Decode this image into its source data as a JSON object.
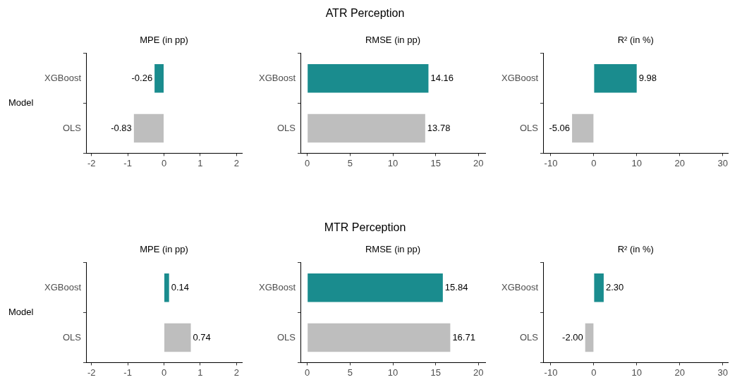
{
  "chart_data": [
    {
      "type": "bar",
      "orientation": "horizontal",
      "subtitle": "MPE (in pp)",
      "ylabel": "Model",
      "categories": [
        "XGBoost",
        "OLS"
      ],
      "values": [
        -0.26,
        -0.83
      ],
      "colors": [
        "#1a8c8e",
        "#bebebe"
      ],
      "value_labels": [
        "-0.26",
        "-0.83"
      ],
      "xlim": [
        -2.15,
        2.15
      ],
      "xticks": [
        -2,
        -1,
        0,
        1,
        2
      ],
      "grid": false,
      "legend": false
    },
    {
      "type": "bar",
      "orientation": "horizontal",
      "title": "ATR Perception",
      "subtitle": "RMSE (in pp)",
      "categories": [
        "XGBoost",
        "OLS"
      ],
      "values": [
        14.16,
        13.78
      ],
      "colors": [
        "#1a8c8e",
        "#bebebe"
      ],
      "value_labels": [
        "14.16",
        "13.78"
      ],
      "xlim": [
        -0.8,
        20.8
      ],
      "xticks": [
        0,
        5,
        10,
        15,
        20
      ],
      "grid": false,
      "legend": false
    },
    {
      "type": "bar",
      "orientation": "horizontal",
      "subtitle": "R² (in %)",
      "categories": [
        "XGBoost",
        "OLS"
      ],
      "values": [
        9.98,
        -5.06
      ],
      "colors": [
        "#1a8c8e",
        "#bebebe"
      ],
      "value_labels": [
        "9.98",
        "-5.06"
      ],
      "xlim": [
        -11.8,
        31.3
      ],
      "xticks": [
        -10,
        0,
        10,
        20,
        30
      ],
      "grid": false,
      "legend": false
    },
    {
      "type": "bar",
      "orientation": "horizontal",
      "subtitle": "MPE (in pp)",
      "ylabel": "Model",
      "categories": [
        "XGBoost",
        "OLS"
      ],
      "values": [
        0.14,
        0.74
      ],
      "colors": [
        "#1a8c8e",
        "#bebebe"
      ],
      "value_labels": [
        "0.14",
        "0.74"
      ],
      "xlim": [
        -2.15,
        2.15
      ],
      "xticks": [
        -2,
        -1,
        0,
        1,
        2
      ],
      "grid": false,
      "legend": false
    },
    {
      "type": "bar",
      "orientation": "horizontal",
      "title": "MTR Perception",
      "subtitle": "RMSE (in pp)",
      "categories": [
        "XGBoost",
        "OLS"
      ],
      "values": [
        15.84,
        16.71
      ],
      "colors": [
        "#1a8c8e",
        "#bebebe"
      ],
      "value_labels": [
        "15.84",
        "16.71"
      ],
      "xlim": [
        -0.8,
        20.8
      ],
      "xticks": [
        0,
        5,
        10,
        15,
        20
      ],
      "grid": false,
      "legend": false
    },
    {
      "type": "bar",
      "orientation": "horizontal",
      "subtitle": "R² (in %)",
      "categories": [
        "XGBoost",
        "OLS"
      ],
      "values": [
        2.3,
        -2.0
      ],
      "colors": [
        "#1a8c8e",
        "#bebebe"
      ],
      "value_labels": [
        "2.30",
        "-2.00"
      ],
      "xlim": [
        -11.8,
        31.3
      ],
      "xticks": [
        -10,
        0,
        10,
        20,
        30
      ],
      "grid": false,
      "legend": false
    }
  ]
}
